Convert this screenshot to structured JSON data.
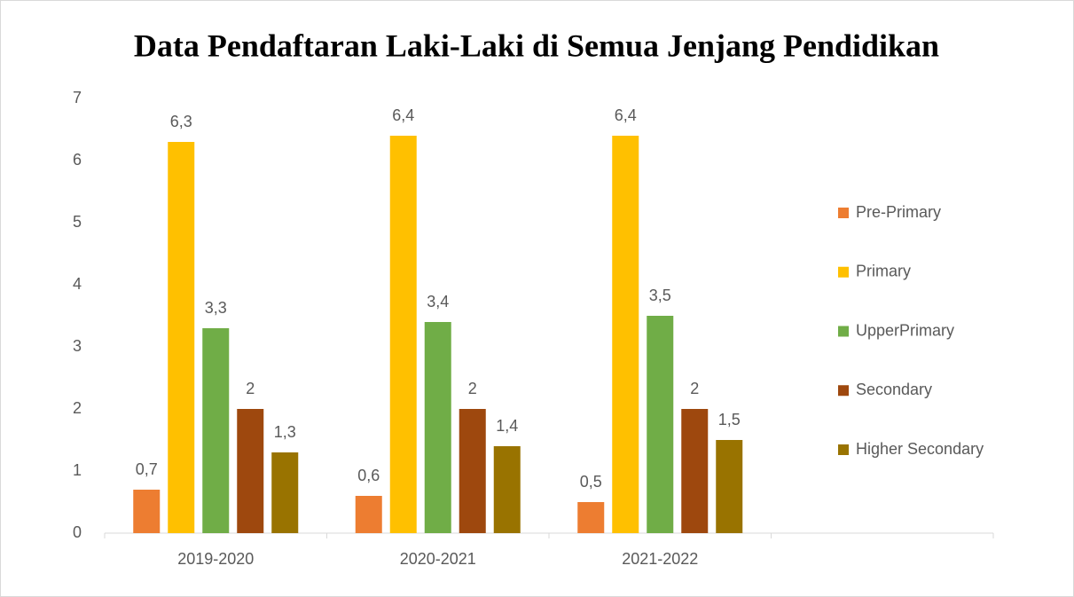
{
  "chart_data": {
    "type": "bar",
    "title": "Data Pendaftaran Laki-Laki di Semua Jenjang Pendidikan",
    "categories": [
      "2019-2020",
      "2020-2021",
      "2021-2022",
      null
    ],
    "series": [
      {
        "name": "Pre-Primary",
        "color": "#ed7d31",
        "values": [
          0.7,
          0.6,
          0.5,
          null
        ],
        "value_labels": [
          "0,7",
          "0,6",
          "0,5",
          null
        ]
      },
      {
        "name": "Primary",
        "color": "#ffc000",
        "values": [
          6.3,
          6.4,
          6.4,
          null
        ],
        "value_labels": [
          "6,3",
          "6,4",
          "6,4",
          null
        ]
      },
      {
        "name": "UpperPrimary",
        "color": "#70ad47",
        "values": [
          3.3,
          3.4,
          3.5,
          null
        ],
        "value_labels": [
          "3,3",
          "3,4",
          "3,5",
          null
        ]
      },
      {
        "name": "Secondary",
        "color": "#9e480e",
        "values": [
          2,
          2,
          2,
          null
        ],
        "value_labels": [
          "2",
          "2",
          "2",
          null
        ]
      },
      {
        "name": "Higher Secondary",
        "color": "#997300",
        "values": [
          1.3,
          1.4,
          1.5,
          null
        ],
        "value_labels": [
          "1,3",
          "1,4",
          "1,5",
          null
        ]
      }
    ],
    "ylim": [
      0,
      7
    ],
    "yticks": [
      0,
      1,
      2,
      3,
      4,
      5,
      6,
      7
    ],
    "grid": false,
    "legend": "right"
  }
}
